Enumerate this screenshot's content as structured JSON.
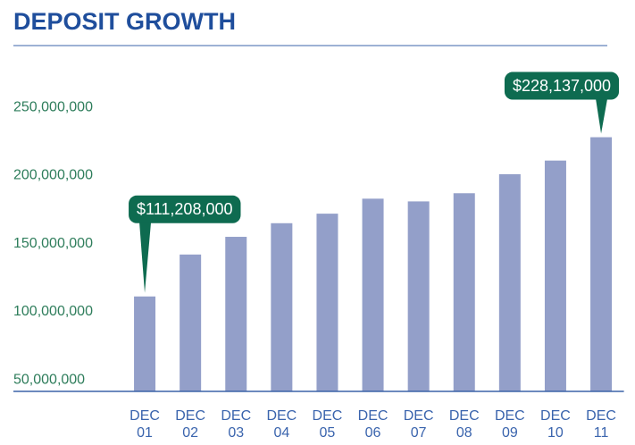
{
  "chart_data": {
    "type": "bar",
    "title": "DEPOSIT GROWTH",
    "categories": [
      "DEC 01",
      "DEC 02",
      "DEC 03",
      "DEC 04",
      "DEC 05",
      "DEC 06",
      "DEC 07",
      "DEC 08",
      "DEC 09",
      "DEC 10",
      "DEC 11"
    ],
    "values": [
      111208000,
      142000000,
      155000000,
      165000000,
      172000000,
      183000000,
      181000000,
      187000000,
      201000000,
      211000000,
      228137000
    ],
    "value_labels": [
      "$111,208,000",
      null,
      null,
      null,
      null,
      null,
      null,
      null,
      null,
      null,
      "$228,137,000"
    ],
    "color": "#939fc9",
    "ylim": [
      41500000,
      260000000
    ],
    "yticks": [
      {
        "value": 50000000,
        "label": "50,000,000"
      },
      {
        "value": 100000000,
        "label": "100,000,000"
      },
      {
        "value": 150000000,
        "label": "150,000,000"
      },
      {
        "value": 200000000,
        "label": "200,000,000"
      },
      {
        "value": 250000000,
        "label": "250,000,000"
      }
    ],
    "grid": false
  }
}
